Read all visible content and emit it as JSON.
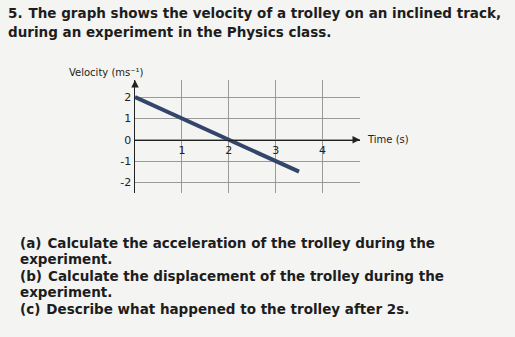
{
  "question": {
    "number": "5.",
    "text": "The graph shows the velocity of a trolley on an inclined track, during an experiment in the Physics class."
  },
  "parts": [
    {
      "label": "(a)",
      "text": "Calculate the acceleration of the trolley during the experiment."
    },
    {
      "label": "(b)",
      "text": "Calculate the displacement of the trolley during the experiment."
    },
    {
      "label": "(c)",
      "text": "Describe what happened to the trolley after 2s."
    }
  ],
  "chart_data": {
    "type": "line",
    "x_label": "Time (s)",
    "y_label": "Velocity (ms⁻¹)",
    "x": [
      0,
      3.5
    ],
    "values": [
      2,
      -1.5
    ],
    "color": "#34456b",
    "xlim": [
      0,
      4.8
    ],
    "ylim": [
      -2.5,
      2.8
    ],
    "xticks": [
      1,
      2,
      3,
      4
    ],
    "yticks": [
      -2,
      -1,
      0,
      1,
      2
    ],
    "grid": true
  }
}
